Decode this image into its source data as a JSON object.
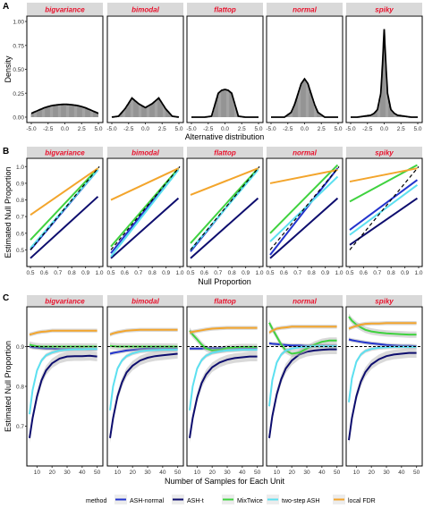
{
  "colors": {
    "strip_bg": "#d9d9d9",
    "strip_text": "#e8102b",
    "panel_border": "#000000",
    "hist_line": "#000000",
    "ash_normal": "#2233cc",
    "ash_t": "#0d0d6e",
    "mixtwice": "#3fd23f",
    "two_step_ash": "#5ce0f0",
    "local_fdr": "#f3a52c",
    "reference_line": "#000000"
  },
  "panel_labels": [
    "A",
    "B",
    "C"
  ],
  "facets": [
    "bigvariance",
    "bimodal",
    "flattop",
    "normal",
    "spiky"
  ],
  "legend": {
    "title": "method",
    "items": [
      {
        "label": "ASH-normal",
        "color": "#2233cc"
      },
      {
        "label": "ASH-t",
        "color": "#0d0d6e"
      },
      {
        "label": "MixTwice",
        "color": "#3fd23f"
      },
      {
        "label": "two-step ASH",
        "color": "#5ce0f0"
      },
      {
        "label": "local FDR",
        "color": "#f3a52c"
      }
    ]
  },
  "chart_data": [
    {
      "panel": "A",
      "type": "area",
      "ylabel": "Density",
      "xlabel": "Alternative distribution",
      "xlim": [
        -5,
        5
      ],
      "ylim": [
        0,
        1.0
      ],
      "yticks": [
        "0.00",
        "0.25",
        "0.50",
        "0.75",
        "1.00"
      ],
      "xticks": [
        "-5.0",
        "-2.5",
        "0.0",
        "2.5",
        "5.0"
      ],
      "facet_curves": {
        "bigvariance": {
          "x": [
            -5,
            -4,
            -3,
            -2,
            -1,
            0,
            1,
            2,
            3,
            4,
            5
          ],
          "y": [
            0.04,
            0.07,
            0.1,
            0.12,
            0.13,
            0.135,
            0.13,
            0.12,
            0.1,
            0.07,
            0.04
          ]
        },
        "bimodal": {
          "x": [
            -5,
            -4,
            -3,
            -2,
            -1,
            0,
            1,
            2,
            3,
            4,
            5
          ],
          "y": [
            0.0,
            0.01,
            0.09,
            0.2,
            0.14,
            0.1,
            0.14,
            0.2,
            0.09,
            0.01,
            0.0
          ]
        },
        "flattop": {
          "x": [
            -5,
            -4,
            -3,
            -2,
            -1,
            -0.5,
            0,
            0.5,
            1,
            2,
            3,
            4,
            5
          ],
          "y": [
            0.0,
            0.0,
            0.0,
            0.01,
            0.25,
            0.28,
            0.29,
            0.28,
            0.25,
            0.01,
            0.0,
            0.0,
            0.0
          ]
        },
        "normal": {
          "x": [
            -5,
            -4,
            -3,
            -2,
            -1.5,
            -1,
            -0.5,
            0,
            0.5,
            1,
            1.5,
            2,
            3,
            4,
            5
          ],
          "y": [
            0.0,
            0.0,
            0.0,
            0.05,
            0.13,
            0.24,
            0.35,
            0.4,
            0.35,
            0.24,
            0.13,
            0.05,
            0.0,
            0.0,
            0.0
          ]
        },
        "spiky": {
          "x": [
            -5,
            -4,
            -3,
            -2,
            -1.5,
            -1,
            -0.5,
            -0.25,
            0,
            0.25,
            0.5,
            1,
            1.5,
            2,
            3,
            4,
            5
          ],
          "y": [
            0.0,
            0.0,
            0.01,
            0.02,
            0.04,
            0.08,
            0.25,
            0.55,
            0.92,
            0.55,
            0.25,
            0.08,
            0.04,
            0.02,
            0.01,
            0.0,
            0.0
          ]
        }
      }
    },
    {
      "panel": "B",
      "type": "line",
      "ylabel": "Estimated Null Proportion",
      "xlabel": "Null Proportion",
      "xlim": [
        0.5,
        1.0
      ],
      "ylim": [
        0.4,
        1.05
      ],
      "xticks": [
        "0.5",
        "0.6",
        "0.7",
        "0.8",
        "0.9",
        "1.0"
      ],
      "yticks": [
        "0.5",
        "0.6",
        "0.7",
        "0.8",
        "0.9",
        "1.0"
      ],
      "facet_series": {
        "bigvariance": [
          {
            "name": "ASH-normal",
            "x": [
              0.5,
              0.99
            ],
            "y": [
              0.5,
              0.98
            ]
          },
          {
            "name": "ASH-t",
            "x": [
              0.5,
              0.99
            ],
            "y": [
              0.45,
              0.82
            ]
          },
          {
            "name": "MixTwice",
            "x": [
              0.5,
              0.99
            ],
            "y": [
              0.56,
              0.99
            ]
          },
          {
            "name": "two-step ASH",
            "x": [
              0.5,
              0.99
            ],
            "y": [
              0.51,
              0.98
            ]
          },
          {
            "name": "local FDR",
            "x": [
              0.5,
              0.99
            ],
            "y": [
              0.71,
              0.99
            ]
          }
        ],
        "bimodal": [
          {
            "name": "ASH-normal",
            "x": [
              0.5,
              0.99
            ],
            "y": [
              0.48,
              0.99
            ]
          },
          {
            "name": "ASH-t",
            "x": [
              0.5,
              0.99
            ],
            "y": [
              0.45,
              0.81
            ]
          },
          {
            "name": "MixTwice",
            "x": [
              0.5,
              0.99
            ],
            "y": [
              0.52,
              0.99
            ]
          },
          {
            "name": "two-step ASH",
            "x": [
              0.5,
              0.99
            ],
            "y": [
              0.46,
              0.98
            ]
          },
          {
            "name": "local FDR",
            "x": [
              0.5,
              0.99
            ],
            "y": [
              0.8,
              0.99
            ]
          }
        ],
        "flattop": [
          {
            "name": "ASH-normal",
            "x": [
              0.5,
              0.99
            ],
            "y": [
              0.49,
              0.99
            ]
          },
          {
            "name": "ASH-t",
            "x": [
              0.5,
              0.99
            ],
            "y": [
              0.45,
              0.81
            ]
          },
          {
            "name": "MixTwice",
            "x": [
              0.5,
              0.99
            ],
            "y": [
              0.54,
              0.99
            ]
          },
          {
            "name": "two-step ASH",
            "x": [
              0.5,
              0.99
            ],
            "y": [
              0.5,
              0.98
            ]
          },
          {
            "name": "local FDR",
            "x": [
              0.5,
              0.99
            ],
            "y": [
              0.83,
              0.99
            ]
          }
        ],
        "normal": [
          {
            "name": "ASH-normal",
            "x": [
              0.5,
              0.99
            ],
            "y": [
              0.47,
              0.99
            ]
          },
          {
            "name": "ASH-t",
            "x": [
              0.5,
              0.99
            ],
            "y": [
              0.45,
              0.81
            ]
          },
          {
            "name": "MixTwice",
            "x": [
              0.5,
              0.99
            ],
            "y": [
              0.6,
              1.01
            ]
          },
          {
            "name": "two-step ASH",
            "x": [
              0.5,
              0.99
            ],
            "y": [
              0.55,
              0.94
            ]
          },
          {
            "name": "local FDR",
            "x": [
              0.5,
              0.99
            ],
            "y": [
              0.9,
              0.98
            ]
          }
        ],
        "spiky": [
          {
            "name": "ASH-normal",
            "x": [
              0.5,
              0.99
            ],
            "y": [
              0.62,
              0.92
            ]
          },
          {
            "name": "ASH-t",
            "x": [
              0.5,
              0.99
            ],
            "y": [
              0.53,
              0.81
            ]
          },
          {
            "name": "MixTwice",
            "x": [
              0.5,
              0.99
            ],
            "y": [
              0.79,
              1.01
            ]
          },
          {
            "name": "two-step ASH",
            "x": [
              0.5,
              0.99
            ],
            "y": [
              0.59,
              0.89
            ]
          },
          {
            "name": "local FDR",
            "x": [
              0.5,
              0.99
            ],
            "y": [
              0.91,
              0.99
            ]
          }
        ]
      },
      "reference_line": {
        "x": [
          0.5,
          1.0
        ],
        "y": [
          0.5,
          1.0
        ]
      }
    },
    {
      "panel": "C",
      "type": "line",
      "ylabel": "Estimated Null Proportion",
      "xlabel": "Number of Samples for Each Unit",
      "xlim": [
        5,
        52
      ],
      "ylim": [
        0.6,
        1.0
      ],
      "xticks": [
        "10",
        "20",
        "30",
        "40",
        "50"
      ],
      "yticks": [
        "0.7",
        "0.8",
        "0.9"
      ],
      "reference_y": 0.9,
      "x": [
        5,
        7,
        10,
        13,
        16,
        20,
        25,
        30,
        35,
        40,
        45,
        50
      ],
      "facet_series": {
        "bigvariance": [
          {
            "name": "ASH-normal",
            "y": [
              0.9,
              0.898,
              0.897,
              0.896,
              0.895,
              0.895,
              0.894,
              0.894,
              0.894,
              0.894,
              0.894,
              0.894
            ]
          },
          {
            "name": "ASH-t",
            "y": [
              0.67,
              0.72,
              0.775,
              0.815,
              0.84,
              0.858,
              0.87,
              0.875,
              0.876,
              0.876,
              0.877,
              0.875
            ]
          },
          {
            "name": "MixTwice",
            "y": [
              0.905,
              0.903,
              0.901,
              0.9,
              0.9,
              0.9,
              0.9,
              0.9,
              0.9,
              0.9,
              0.9,
              0.9
            ]
          },
          {
            "name": "two-step ASH",
            "y": [
              0.73,
              0.79,
              0.84,
              0.865,
              0.878,
              0.885,
              0.89,
              0.892,
              0.893,
              0.893,
              0.894,
              0.894
            ]
          },
          {
            "name": "local FDR",
            "y": [
              0.93,
              0.932,
              0.935,
              0.937,
              0.938,
              0.94,
              0.94,
              0.94,
              0.94,
              0.94,
              0.94,
              0.94
            ]
          }
        ],
        "bimodal": [
          {
            "name": "ASH-normal",
            "y": [
              0.882,
              0.884,
              0.886,
              0.888,
              0.89,
              0.892,
              0.894,
              0.895,
              0.895,
              0.895,
              0.895,
              0.895
            ]
          },
          {
            "name": "ASH-t",
            "y": [
              0.67,
              0.72,
              0.775,
              0.81,
              0.835,
              0.852,
              0.865,
              0.872,
              0.876,
              0.878,
              0.88,
              0.882
            ]
          },
          {
            "name": "MixTwice",
            "y": [
              0.902,
              0.901,
              0.9,
              0.9,
              0.9,
              0.9,
              0.9,
              0.9,
              0.9,
              0.9,
              0.9,
              0.9
            ]
          },
          {
            "name": "two-step ASH",
            "y": [
              0.74,
              0.8,
              0.845,
              0.865,
              0.876,
              0.883,
              0.888,
              0.89,
              0.891,
              0.892,
              0.892,
              0.892
            ]
          },
          {
            "name": "local FDR",
            "y": [
              0.93,
              0.933,
              0.936,
              0.938,
              0.94,
              0.941,
              0.942,
              0.942,
              0.942,
              0.942,
              0.942,
              0.942
            ]
          }
        ],
        "flattop": [
          {
            "name": "ASH-normal",
            "y": [
              0.895,
              0.895,
              0.895,
              0.895,
              0.896,
              0.896,
              0.896,
              0.896,
              0.896,
              0.896,
              0.896,
              0.896
            ]
          },
          {
            "name": "ASH-t",
            "y": [
              0.67,
              0.72,
              0.772,
              0.808,
              0.83,
              0.848,
              0.86,
              0.867,
              0.871,
              0.873,
              0.875,
              0.875
            ]
          },
          {
            "name": "MixTwice",
            "y": [
              0.94,
              0.93,
              0.918,
              0.905,
              0.895,
              0.89,
              0.892,
              0.896,
              0.898,
              0.899,
              0.899,
              0.899
            ]
          },
          {
            "name": "two-step ASH",
            "y": [
              0.74,
              0.8,
              0.845,
              0.866,
              0.877,
              0.884,
              0.888,
              0.89,
              0.891,
              0.892,
              0.892,
              0.892
            ]
          },
          {
            "name": "local FDR",
            "y": [
              0.935,
              0.937,
              0.939,
              0.941,
              0.943,
              0.945,
              0.946,
              0.947,
              0.947,
              0.947,
              0.947,
              0.947
            ]
          }
        ],
        "normal": [
          {
            "name": "ASH-normal",
            "y": [
              0.908,
              0.907,
              0.906,
              0.905,
              0.904,
              0.903,
              0.903,
              0.902,
              0.902,
              0.902,
              0.902,
              0.902
            ]
          },
          {
            "name": "ASH-t",
            "y": [
              0.67,
              0.725,
              0.78,
              0.818,
              0.845,
              0.865,
              0.88,
              0.887,
              0.89,
              0.892,
              0.893,
              0.893
            ]
          },
          {
            "name": "MixTwice",
            "y": [
              0.96,
              0.945,
              0.925,
              0.905,
              0.89,
              0.882,
              0.885,
              0.895,
              0.905,
              0.912,
              0.915,
              0.915
            ]
          },
          {
            "name": "two-step ASH",
            "y": [
              0.75,
              0.815,
              0.86,
              0.88,
              0.89,
              0.895,
              0.898,
              0.9,
              0.901,
              0.901,
              0.901,
              0.901
            ]
          },
          {
            "name": "local FDR",
            "y": [
              0.935,
              0.94,
              0.945,
              0.947,
              0.948,
              0.95,
              0.95,
              0.95,
              0.95,
              0.95,
              0.95,
              0.95
            ]
          }
        ],
        "spiky": [
          {
            "name": "ASH-normal",
            "y": [
              0.918,
              0.916,
              0.914,
              0.912,
              0.91,
              0.908,
              0.906,
              0.904,
              0.903,
              0.902,
              0.902,
              0.901
            ]
          },
          {
            "name": "ASH-t",
            "y": [
              0.665,
              0.72,
              0.775,
              0.812,
              0.836,
              0.855,
              0.868,
              0.876,
              0.88,
              0.882,
              0.884,
              0.884
            ]
          },
          {
            "name": "MixTwice",
            "y": [
              0.975,
              0.965,
              0.955,
              0.948,
              0.942,
              0.938,
              0.935,
              0.933,
              0.932,
              0.931,
              0.93,
              0.93
            ]
          },
          {
            "name": "two-step ASH",
            "y": [
              0.76,
              0.82,
              0.862,
              0.88,
              0.889,
              0.894,
              0.897,
              0.898,
              0.899,
              0.899,
              0.899,
              0.899
            ]
          },
          {
            "name": "local FDR",
            "y": [
              0.945,
              0.948,
              0.952,
              0.955,
              0.957,
              0.958,
              0.958,
              0.959,
              0.959,
              0.959,
              0.959,
              0.959
            ]
          }
        ]
      }
    }
  ]
}
